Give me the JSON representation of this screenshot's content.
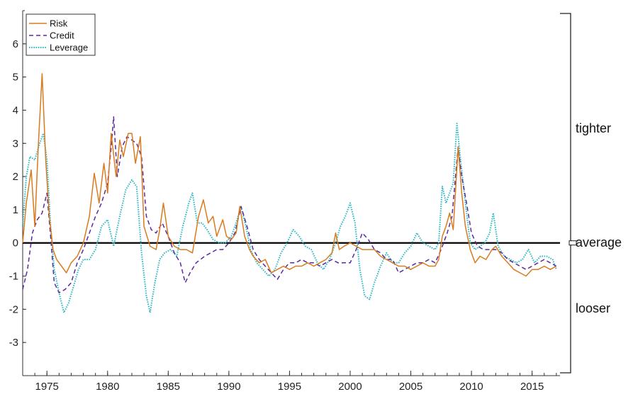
{
  "chart_data": {
    "type": "line",
    "title": "",
    "xlabel": "",
    "ylabel": "",
    "xlim": [
      1973,
      2017.3
    ],
    "ylim": [
      -4,
      7
    ],
    "x_ticks": [
      1975,
      1980,
      1985,
      1990,
      1995,
      2000,
      2005,
      2010,
      2015
    ],
    "y_ticks": [
      -3,
      -2,
      -1,
      0,
      1,
      2,
      3,
      4,
      5,
      6
    ],
    "grid": false,
    "legend_position": "top-left",
    "zero_line": true,
    "side_brackets": {
      "tighter": "tighter",
      "average": "average",
      "looser": "looser"
    },
    "series": [
      {
        "name": "Risk",
        "color": "#D97B1E",
        "style": "solid",
        "points": [
          [
            1973.0,
            0.0
          ],
          [
            1973.3,
            1.2
          ],
          [
            1973.7,
            2.2
          ],
          [
            1974.0,
            0.5
          ],
          [
            1974.3,
            3.0
          ],
          [
            1974.6,
            5.1
          ],
          [
            1974.9,
            2.5
          ],
          [
            1975.2,
            0.8
          ],
          [
            1975.5,
            -0.2
          ],
          [
            1975.8,
            -0.5
          ],
          [
            1976.2,
            -0.7
          ],
          [
            1976.6,
            -0.9
          ],
          [
            1977.0,
            -0.6
          ],
          [
            1977.5,
            -0.4
          ],
          [
            1978.0,
            0.0
          ],
          [
            1978.5,
            0.8
          ],
          [
            1978.9,
            2.1
          ],
          [
            1979.3,
            1.2
          ],
          [
            1979.7,
            2.4
          ],
          [
            1980.0,
            1.5
          ],
          [
            1980.3,
            3.3
          ],
          [
            1980.7,
            2.0
          ],
          [
            1981.0,
            3.1
          ],
          [
            1981.3,
            2.6
          ],
          [
            1981.7,
            3.3
          ],
          [
            1982.0,
            3.3
          ],
          [
            1982.3,
            2.4
          ],
          [
            1982.7,
            3.2
          ],
          [
            1983.0,
            0.5
          ],
          [
            1983.5,
            -0.1
          ],
          [
            1984.0,
            -0.2
          ],
          [
            1984.3,
            0.4
          ],
          [
            1984.6,
            1.2
          ],
          [
            1985.0,
            0.2
          ],
          [
            1985.5,
            -0.1
          ],
          [
            1986.0,
            -0.2
          ],
          [
            1986.5,
            -0.2
          ],
          [
            1987.0,
            -0.3
          ],
          [
            1987.5,
            0.8
          ],
          [
            1987.9,
            1.3
          ],
          [
            1988.3,
            0.6
          ],
          [
            1988.7,
            0.8
          ],
          [
            1989.0,
            0.2
          ],
          [
            1989.5,
            0.7
          ],
          [
            1989.8,
            0.2
          ],
          [
            1990.2,
            0.1
          ],
          [
            1990.6,
            0.3
          ],
          [
            1990.9,
            1.1
          ],
          [
            1991.3,
            0.2
          ],
          [
            1991.7,
            -0.2
          ],
          [
            1992.0,
            -0.4
          ],
          [
            1992.5,
            -0.6
          ],
          [
            1993.0,
            -0.5
          ],
          [
            1993.5,
            -0.9
          ],
          [
            1994.0,
            -0.8
          ],
          [
            1994.5,
            -0.7
          ],
          [
            1995.0,
            -0.8
          ],
          [
            1995.5,
            -0.7
          ],
          [
            1996.0,
            -0.7
          ],
          [
            1996.5,
            -0.6
          ],
          [
            1997.0,
            -0.7
          ],
          [
            1997.5,
            -0.6
          ],
          [
            1998.0,
            -0.5
          ],
          [
            1998.5,
            -0.3
          ],
          [
            1998.8,
            0.3
          ],
          [
            1999.1,
            -0.2
          ],
          [
            1999.5,
            -0.1
          ],
          [
            2000.0,
            0.0
          ],
          [
            2000.5,
            -0.1
          ],
          [
            2001.0,
            -0.2
          ],
          [
            2001.5,
            -0.2
          ],
          [
            2002.0,
            -0.2
          ],
          [
            2002.5,
            -0.4
          ],
          [
            2003.0,
            -0.5
          ],
          [
            2003.5,
            -0.6
          ],
          [
            2004.0,
            -0.7
          ],
          [
            2004.5,
            -0.7
          ],
          [
            2005.0,
            -0.8
          ],
          [
            2005.5,
            -0.7
          ],
          [
            2006.0,
            -0.6
          ],
          [
            2006.5,
            -0.7
          ],
          [
            2007.0,
            -0.7
          ],
          [
            2007.3,
            -0.5
          ],
          [
            2007.6,
            0.2
          ],
          [
            2007.9,
            0.5
          ],
          [
            2008.2,
            0.9
          ],
          [
            2008.5,
            0.4
          ],
          [
            2008.9,
            2.9
          ],
          [
            2009.2,
            1.5
          ],
          [
            2009.5,
            0.5
          ],
          [
            2009.9,
            -0.2
          ],
          [
            2010.3,
            -0.6
          ],
          [
            2010.7,
            -0.4
          ],
          [
            2011.2,
            -0.5
          ],
          [
            2011.7,
            -0.2
          ],
          [
            2012.0,
            -0.1
          ],
          [
            2012.5,
            -0.4
          ],
          [
            2013.0,
            -0.6
          ],
          [
            2013.5,
            -0.8
          ],
          [
            2014.0,
            -0.9
          ],
          [
            2014.5,
            -1.0
          ],
          [
            2015.0,
            -0.8
          ],
          [
            2015.5,
            -0.8
          ],
          [
            2016.0,
            -0.7
          ],
          [
            2016.5,
            -0.8
          ],
          [
            2017.0,
            -0.7
          ]
        ]
      },
      {
        "name": "Credit",
        "color": "#5B2A9E",
        "style": "dashed",
        "points": [
          [
            1973.0,
            -1.4
          ],
          [
            1973.4,
            -0.8
          ],
          [
            1973.8,
            0.3
          ],
          [
            1974.2,
            0.7
          ],
          [
            1974.6,
            0.9
          ],
          [
            1975.0,
            1.5
          ],
          [
            1975.3,
            0.2
          ],
          [
            1975.6,
            -1.2
          ],
          [
            1976.0,
            -1.5
          ],
          [
            1976.5,
            -1.4
          ],
          [
            1977.0,
            -1.2
          ],
          [
            1977.5,
            -0.6
          ],
          [
            1978.0,
            -0.2
          ],
          [
            1978.5,
            0.3
          ],
          [
            1979.0,
            0.8
          ],
          [
            1979.5,
            1.2
          ],
          [
            1980.0,
            1.8
          ],
          [
            1980.3,
            2.9
          ],
          [
            1980.5,
            3.8
          ],
          [
            1980.8,
            2.0
          ],
          [
            1981.2,
            2.9
          ],
          [
            1981.6,
            3.2
          ],
          [
            1982.0,
            3.1
          ],
          [
            1982.4,
            3.0
          ],
          [
            1982.8,
            2.6
          ],
          [
            1983.2,
            0.8
          ],
          [
            1983.6,
            0.4
          ],
          [
            1984.0,
            0.3
          ],
          [
            1984.5,
            0.6
          ],
          [
            1985.0,
            0.2
          ],
          [
            1985.5,
            -0.3
          ],
          [
            1986.0,
            -0.6
          ],
          [
            1986.4,
            -1.2
          ],
          [
            1986.8,
            -0.9
          ],
          [
            1987.3,
            -0.6
          ],
          [
            1988.0,
            -0.4
          ],
          [
            1988.5,
            -0.3
          ],
          [
            1989.0,
            -0.2
          ],
          [
            1989.5,
            -0.2
          ],
          [
            1990.0,
            0.0
          ],
          [
            1990.5,
            0.3
          ],
          [
            1991.0,
            1.1
          ],
          [
            1991.5,
            0.5
          ],
          [
            1992.0,
            -0.2
          ],
          [
            1992.5,
            -0.5
          ],
          [
            1993.0,
            -0.7
          ],
          [
            1993.5,
            -0.9
          ],
          [
            1994.0,
            -1.1
          ],
          [
            1994.5,
            -0.8
          ],
          [
            1995.0,
            -0.6
          ],
          [
            1995.5,
            -0.6
          ],
          [
            1996.0,
            -0.5
          ],
          [
            1996.5,
            -0.6
          ],
          [
            1997.0,
            -0.6
          ],
          [
            1997.5,
            -0.7
          ],
          [
            1998.0,
            -0.6
          ],
          [
            1998.5,
            -0.5
          ],
          [
            1999.0,
            -0.6
          ],
          [
            1999.5,
            -0.6
          ],
          [
            2000.0,
            -0.6
          ],
          [
            2000.5,
            -0.2
          ],
          [
            2001.0,
            0.3
          ],
          [
            2001.5,
            0.1
          ],
          [
            2002.0,
            -0.2
          ],
          [
            2002.5,
            -0.3
          ],
          [
            2003.0,
            -0.5
          ],
          [
            2003.5,
            -0.5
          ],
          [
            2004.0,
            -0.9
          ],
          [
            2004.5,
            -0.8
          ],
          [
            2005.0,
            -0.7
          ],
          [
            2005.5,
            -0.6
          ],
          [
            2006.0,
            -0.6
          ],
          [
            2006.5,
            -0.5
          ],
          [
            2007.0,
            -0.6
          ],
          [
            2007.5,
            -0.2
          ],
          [
            2008.0,
            0.3
          ],
          [
            2008.4,
            0.8
          ],
          [
            2008.9,
            2.9
          ],
          [
            2009.2,
            2.0
          ],
          [
            2009.6,
            1.2
          ],
          [
            2010.0,
            0.3
          ],
          [
            2010.5,
            -0.1
          ],
          [
            2011.0,
            -0.2
          ],
          [
            2011.5,
            -0.2
          ],
          [
            2012.0,
            -0.2
          ],
          [
            2012.5,
            -0.3
          ],
          [
            2013.0,
            -0.5
          ],
          [
            2013.5,
            -0.6
          ],
          [
            2014.0,
            -0.7
          ],
          [
            2014.5,
            -0.8
          ],
          [
            2015.0,
            -0.7
          ],
          [
            2015.5,
            -0.6
          ],
          [
            2016.0,
            -0.5
          ],
          [
            2016.5,
            -0.6
          ],
          [
            2017.0,
            -0.7
          ]
        ]
      },
      {
        "name": "Leverage",
        "color": "#2FB8C4",
        "style": "dotted",
        "points": [
          [
            1973.0,
            0.5
          ],
          [
            1973.3,
            2.0
          ],
          [
            1973.6,
            2.6
          ],
          [
            1974.0,
            2.5
          ],
          [
            1974.4,
            3.0
          ],
          [
            1974.7,
            3.3
          ],
          [
            1975.0,
            2.5
          ],
          [
            1975.3,
            0.5
          ],
          [
            1975.6,
            -0.8
          ],
          [
            1976.0,
            -1.5
          ],
          [
            1976.4,
            -2.1
          ],
          [
            1976.8,
            -1.8
          ],
          [
            1977.2,
            -1.3
          ],
          [
            1977.6,
            -0.8
          ],
          [
            1978.0,
            -0.5
          ],
          [
            1978.5,
            -0.5
          ],
          [
            1979.0,
            -0.2
          ],
          [
            1979.5,
            0.5
          ],
          [
            1980.0,
            0.7
          ],
          [
            1980.5,
            -0.1
          ],
          [
            1981.0,
            0.8
          ],
          [
            1981.5,
            1.6
          ],
          [
            1982.0,
            1.9
          ],
          [
            1982.4,
            1.7
          ],
          [
            1982.8,
            -0.3
          ],
          [
            1983.2,
            -1.6
          ],
          [
            1983.5,
            -2.1
          ],
          [
            1983.9,
            -1.2
          ],
          [
            1984.3,
            -0.5
          ],
          [
            1984.7,
            -0.3
          ],
          [
            1985.2,
            -0.2
          ],
          [
            1985.7,
            -0.4
          ],
          [
            1986.2,
            0.5
          ],
          [
            1986.7,
            1.2
          ],
          [
            1987.0,
            1.5
          ],
          [
            1987.4,
            0.6
          ],
          [
            1987.8,
            0.6
          ],
          [
            1988.2,
            0.4
          ],
          [
            1988.7,
            0.1
          ],
          [
            1989.2,
            0.0
          ],
          [
            1989.7,
            0.0
          ],
          [
            1990.2,
            0.2
          ],
          [
            1990.6,
            0.6
          ],
          [
            1991.0,
            1.1
          ],
          [
            1991.4,
            0.5
          ],
          [
            1991.8,
            -0.2
          ],
          [
            1992.3,
            -0.6
          ],
          [
            1992.8,
            -0.8
          ],
          [
            1993.3,
            -1.0
          ],
          [
            1993.8,
            -0.8
          ],
          [
            1994.3,
            -0.3
          ],
          [
            1994.8,
            0.0
          ],
          [
            1995.3,
            0.4
          ],
          [
            1995.8,
            0.2
          ],
          [
            1996.3,
            -0.1
          ],
          [
            1996.8,
            -0.2
          ],
          [
            1997.3,
            -0.6
          ],
          [
            1997.8,
            -0.8
          ],
          [
            1998.3,
            -0.5
          ],
          [
            1998.8,
            0.0
          ],
          [
            1999.2,
            0.5
          ],
          [
            1999.6,
            0.8
          ],
          [
            2000.0,
            1.2
          ],
          [
            2000.4,
            0.6
          ],
          [
            2000.8,
            -0.8
          ],
          [
            2001.2,
            -1.6
          ],
          [
            2001.6,
            -1.7
          ],
          [
            2002.0,
            -1.2
          ],
          [
            2002.5,
            -0.7
          ],
          [
            2003.0,
            -0.3
          ],
          [
            2003.5,
            -0.6
          ],
          [
            2004.0,
            -0.6
          ],
          [
            2004.5,
            -0.3
          ],
          [
            2005.0,
            -0.1
          ],
          [
            2005.5,
            0.3
          ],
          [
            2006.0,
            0.0
          ],
          [
            2006.5,
            -0.1
          ],
          [
            2007.0,
            -0.2
          ],
          [
            2007.3,
            0.0
          ],
          [
            2007.6,
            1.7
          ],
          [
            2007.9,
            1.2
          ],
          [
            2008.2,
            1.5
          ],
          [
            2008.5,
            1.8
          ],
          [
            2008.8,
            3.6
          ],
          [
            2009.1,
            2.5
          ],
          [
            2009.5,
            1.2
          ],
          [
            2009.9,
            0.0
          ],
          [
            2010.3,
            -0.2
          ],
          [
            2010.7,
            -0.1
          ],
          [
            2011.1,
            0.0
          ],
          [
            2011.5,
            0.3
          ],
          [
            2011.8,
            0.9
          ],
          [
            2012.2,
            -0.1
          ],
          [
            2012.7,
            -0.4
          ],
          [
            2013.2,
            -0.5
          ],
          [
            2013.7,
            -0.6
          ],
          [
            2014.2,
            -0.5
          ],
          [
            2014.7,
            -0.2
          ],
          [
            2015.2,
            -0.6
          ],
          [
            2015.7,
            -0.4
          ],
          [
            2016.2,
            -0.4
          ],
          [
            2016.7,
            -0.5
          ],
          [
            2017.0,
            -0.8
          ]
        ]
      }
    ]
  }
}
